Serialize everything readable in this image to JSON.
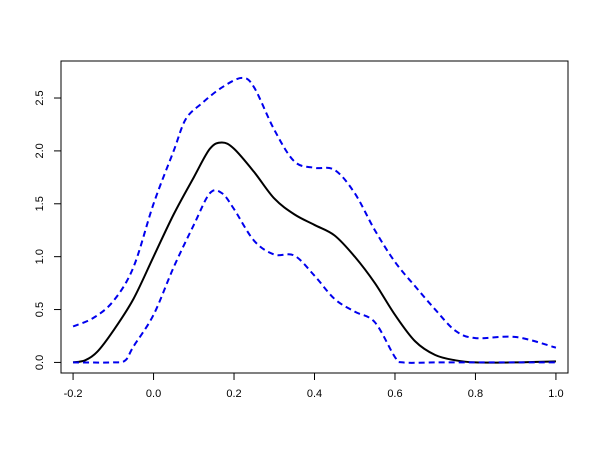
{
  "chart_data": {
    "type": "line",
    "title": "",
    "xlabel": "",
    "ylabel": "",
    "xlim": [
      -0.23,
      1.03
    ],
    "ylim": [
      -0.1,
      2.85
    ],
    "x_ticks": [
      -0.2,
      0.0,
      0.2,
      0.4,
      0.6,
      0.8,
      1.0
    ],
    "x_tick_labels": [
      "-0.2",
      "0.0",
      "0.2",
      "0.4",
      "0.6",
      "0.8",
      "1.0"
    ],
    "y_ticks": [
      0.0,
      0.5,
      1.0,
      1.5,
      2.0,
      2.5
    ],
    "y_tick_labels": [
      "0.0",
      "0.5",
      "1.0",
      "1.5",
      "2.0",
      "2.5"
    ],
    "grid": false,
    "legend": "none",
    "series": [
      {
        "style": "solid",
        "color": "#000000",
        "points": [
          [
            -0.2,
            0.0
          ],
          [
            -0.17,
            0.02
          ],
          [
            -0.14,
            0.1
          ],
          [
            -0.1,
            0.3
          ],
          [
            -0.05,
            0.6
          ],
          [
            0.0,
            1.0
          ],
          [
            0.05,
            1.4
          ],
          [
            0.1,
            1.75
          ],
          [
            0.14,
            2.02
          ],
          [
            0.17,
            2.08
          ],
          [
            0.2,
            2.02
          ],
          [
            0.25,
            1.8
          ],
          [
            0.3,
            1.55
          ],
          [
            0.35,
            1.4
          ],
          [
            0.4,
            1.3
          ],
          [
            0.45,
            1.2
          ],
          [
            0.5,
            1.0
          ],
          [
            0.55,
            0.75
          ],
          [
            0.6,
            0.45
          ],
          [
            0.65,
            0.2
          ],
          [
            0.7,
            0.07
          ],
          [
            0.75,
            0.02
          ],
          [
            0.8,
            0.0
          ],
          [
            0.9,
            0.0
          ],
          [
            1.0,
            0.01
          ]
        ]
      },
      {
        "style": "dashed",
        "color": "#0000EE",
        "points": [
          [
            -0.2,
            0.34
          ],
          [
            -0.15,
            0.42
          ],
          [
            -0.1,
            0.58
          ],
          [
            -0.05,
            0.9
          ],
          [
            0.0,
            1.5
          ],
          [
            0.05,
            2.0
          ],
          [
            0.08,
            2.3
          ],
          [
            0.12,
            2.45
          ],
          [
            0.17,
            2.6
          ],
          [
            0.22,
            2.69
          ],
          [
            0.25,
            2.6
          ],
          [
            0.3,
            2.2
          ],
          [
            0.35,
            1.9
          ],
          [
            0.4,
            1.84
          ],
          [
            0.45,
            1.82
          ],
          [
            0.5,
            1.6
          ],
          [
            0.55,
            1.25
          ],
          [
            0.6,
            0.95
          ],
          [
            0.65,
            0.72
          ],
          [
            0.7,
            0.5
          ],
          [
            0.75,
            0.3
          ],
          [
            0.8,
            0.23
          ],
          [
            0.9,
            0.24
          ],
          [
            1.0,
            0.14
          ]
        ]
      },
      {
        "style": "dashed",
        "color": "#0000EE",
        "points": [
          [
            -0.2,
            0.0
          ],
          [
            -0.1,
            0.0
          ],
          [
            -0.07,
            0.02
          ],
          [
            -0.05,
            0.15
          ],
          [
            0.0,
            0.45
          ],
          [
            0.05,
            0.9
          ],
          [
            0.1,
            1.3
          ],
          [
            0.14,
            1.6
          ],
          [
            0.17,
            1.6
          ],
          [
            0.2,
            1.45
          ],
          [
            0.25,
            1.15
          ],
          [
            0.3,
            1.02
          ],
          [
            0.35,
            1.01
          ],
          [
            0.4,
            0.82
          ],
          [
            0.45,
            0.6
          ],
          [
            0.5,
            0.48
          ],
          [
            0.55,
            0.38
          ],
          [
            0.6,
            0.05
          ],
          [
            0.62,
            0.0
          ],
          [
            0.7,
            0.0
          ],
          [
            0.8,
            0.0
          ],
          [
            0.9,
            0.0
          ],
          [
            1.0,
            0.0
          ]
        ]
      }
    ]
  }
}
